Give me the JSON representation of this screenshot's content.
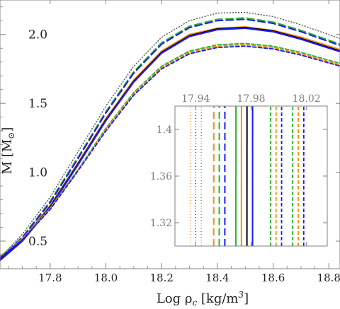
{
  "chart_data": [
    {
      "type": "line",
      "role": "main",
      "title": "",
      "xlabel": "Log ρ",
      "xlabel_sub": "c",
      "xlabel_units": " [kg/m",
      "xlabel_units_sup": "3",
      "xlabel_units_close": "]",
      "ylabel": "M [M",
      "ylabel_sun": "⊙",
      "ylabel_close": "]",
      "xlim": [
        17.62,
        18.84
      ],
      "ylim": [
        0.3,
        2.25
      ],
      "xticks": [
        17.8,
        18.0,
        18.2,
        18.4,
        18.6,
        18.8
      ],
      "xtick_labels": [
        "17.8",
        "18.0",
        "18.2",
        "18.4",
        "18.6",
        "18.8"
      ],
      "yticks": [
        0.5,
        1.0,
        1.5,
        2.0
      ],
      "ytick_labels": [
        "0.5",
        "1.0",
        "1.5",
        "2.0"
      ],
      "grid": false,
      "series": [
        {
          "color": "#555555",
          "dash": "1,3",
          "width": 1.4,
          "x": [
            17.62,
            17.7,
            17.8,
            17.9,
            18.0,
            18.1,
            18.2,
            18.3,
            18.4,
            18.5,
            18.6,
            18.7,
            18.84
          ],
          "y": [
            0.38,
            0.55,
            0.82,
            1.15,
            1.48,
            1.77,
            1.98,
            2.1,
            2.155,
            2.16,
            2.13,
            2.07,
            1.97
          ]
        },
        {
          "color": "#2ab52a",
          "dash": "10,5",
          "width": 2,
          "x": [
            17.62,
            17.7,
            17.8,
            17.9,
            18.0,
            18.1,
            18.2,
            18.3,
            18.4,
            18.5,
            18.6,
            18.7,
            18.84
          ],
          "y": [
            0.38,
            0.53,
            0.79,
            1.11,
            1.44,
            1.73,
            1.94,
            2.06,
            2.11,
            2.12,
            2.09,
            2.03,
            1.93
          ]
        },
        {
          "color": "#1a1aff",
          "dash": "10,5",
          "width": 2,
          "x": [
            17.62,
            17.7,
            17.8,
            17.9,
            18.0,
            18.1,
            18.2,
            18.3,
            18.4,
            18.5,
            18.6,
            18.7,
            18.84
          ],
          "y": [
            0.375,
            0.525,
            0.78,
            1.1,
            1.43,
            1.72,
            1.93,
            2.05,
            2.1,
            2.11,
            2.08,
            2.02,
            1.92
          ]
        },
        {
          "color": "#ff8c00",
          "dash": "",
          "width": 2,
          "x": [
            17.62,
            17.7,
            17.8,
            17.9,
            18.0,
            18.1,
            18.2,
            18.3,
            18.4,
            18.5,
            18.6,
            18.7,
            18.84
          ],
          "y": [
            0.37,
            0.51,
            0.76,
            1.07,
            1.39,
            1.67,
            1.88,
            2.0,
            2.045,
            2.055,
            2.03,
            1.98,
            1.89
          ]
        },
        {
          "color": "#000000",
          "dash": "",
          "width": 2.2,
          "x": [
            17.62,
            17.7,
            17.8,
            17.9,
            18.0,
            18.1,
            18.2,
            18.3,
            18.4,
            18.5,
            18.6,
            18.7,
            18.84
          ],
          "y": [
            0.365,
            0.505,
            0.75,
            1.06,
            1.38,
            1.66,
            1.87,
            1.99,
            2.04,
            2.05,
            2.025,
            1.97,
            1.88
          ]
        },
        {
          "color": "#1a1aff",
          "dash": "",
          "width": 2.2,
          "x": [
            17.62,
            17.7,
            17.8,
            17.9,
            18.0,
            18.1,
            18.2,
            18.3,
            18.4,
            18.5,
            18.6,
            18.7,
            18.84
          ],
          "y": [
            0.36,
            0.5,
            0.745,
            1.055,
            1.375,
            1.655,
            1.865,
            1.985,
            2.035,
            2.045,
            2.02,
            1.965,
            1.875
          ]
        },
        {
          "color": "#2ab52a",
          "dash": "5,3",
          "width": 1.8,
          "x": [
            17.62,
            17.7,
            17.8,
            17.9,
            18.0,
            18.1,
            18.2,
            18.3,
            18.4,
            18.5,
            18.6,
            18.7,
            18.84
          ],
          "y": [
            0.39,
            0.52,
            0.74,
            1.02,
            1.32,
            1.58,
            1.77,
            1.88,
            1.925,
            1.935,
            1.915,
            1.87,
            1.79
          ]
        },
        {
          "color": "#ff8c00",
          "dash": "5,3",
          "width": 1.8,
          "x": [
            17.62,
            17.7,
            17.8,
            17.9,
            18.0,
            18.1,
            18.2,
            18.3,
            18.4,
            18.5,
            18.6,
            18.7,
            18.84
          ],
          "y": [
            0.385,
            0.515,
            0.735,
            1.015,
            1.31,
            1.57,
            1.76,
            1.87,
            1.915,
            1.925,
            1.905,
            1.86,
            1.78
          ]
        },
        {
          "color": "#1a1aff",
          "dash": "5,3",
          "width": 1.8,
          "x": [
            17.62,
            17.7,
            17.8,
            17.9,
            18.0,
            18.1,
            18.2,
            18.3,
            18.4,
            18.5,
            18.6,
            18.7,
            18.84
          ],
          "y": [
            0.38,
            0.51,
            0.73,
            1.01,
            1.3,
            1.56,
            1.75,
            1.86,
            1.905,
            1.915,
            1.895,
            1.85,
            1.77
          ]
        }
      ]
    },
    {
      "type": "line",
      "role": "inset",
      "title": "",
      "xlim": [
        17.925,
        18.035
      ],
      "ylim": [
        1.3,
        1.42
      ],
      "xticks": [
        17.94,
        17.98,
        18.02
      ],
      "xtick_labels": [
        "17.94",
        "17.98",
        "18.02"
      ],
      "yticks": [
        1.32,
        1.36,
        1.4
      ],
      "ytick_labels": [
        "1.32",
        "1.36",
        "1.4"
      ],
      "grid": false,
      "line_slope": 0.00042,
      "series": [
        {
          "color": "#ff8c00",
          "dash": "1,3",
          "width": 1.4,
          "x_at_ymin": 17.936
        },
        {
          "color": "#1a1aff",
          "dash": "1,3",
          "width": 1.4,
          "x_at_ymin": 17.94
        },
        {
          "color": "#2ab52a",
          "dash": "1,3",
          "width": 1.4,
          "x_at_ymin": 17.944
        },
        {
          "color": "#ff8c00",
          "dash": "10,5",
          "width": 2,
          "x_at_ymin": 17.953
        },
        {
          "color": "#2ab52a",
          "dash": "10,5",
          "width": 2,
          "x_at_ymin": 17.957
        },
        {
          "color": "#1a1aff",
          "dash": "10,5",
          "width": 2,
          "x_at_ymin": 17.961
        },
        {
          "color": "#2ab52a",
          "dash": "",
          "width": 2,
          "x_at_ymin": 17.969
        },
        {
          "color": "#ff8c00",
          "dash": "",
          "width": 2,
          "x_at_ymin": 17.973
        },
        {
          "color": "#000000",
          "dash": "",
          "width": 2,
          "x_at_ymin": 17.977
        },
        {
          "color": "#1a1aff",
          "dash": "",
          "width": 2,
          "x_at_ymin": 17.981
        },
        {
          "color": "#2ab52a",
          "dash": "5,3",
          "width": 1.8,
          "x_at_ymin": 17.994
        },
        {
          "color": "#ff8c00",
          "dash": "5,3",
          "width": 1.8,
          "x_at_ymin": 17.998
        },
        {
          "color": "#1a1aff",
          "dash": "5,3",
          "width": 1.8,
          "x_at_ymin": 18.002
        },
        {
          "color": "#2ab52a",
          "dash": "5,3",
          "width": 1.8,
          "x_at_ymin": 18.01
        },
        {
          "color": "#ff8c00",
          "dash": "5,3",
          "width": 1.8,
          "x_at_ymin": 18.014
        },
        {
          "color": "#1a1aff",
          "dash": "5,3",
          "width": 1.8,
          "x_at_ymin": 18.018
        }
      ]
    }
  ]
}
